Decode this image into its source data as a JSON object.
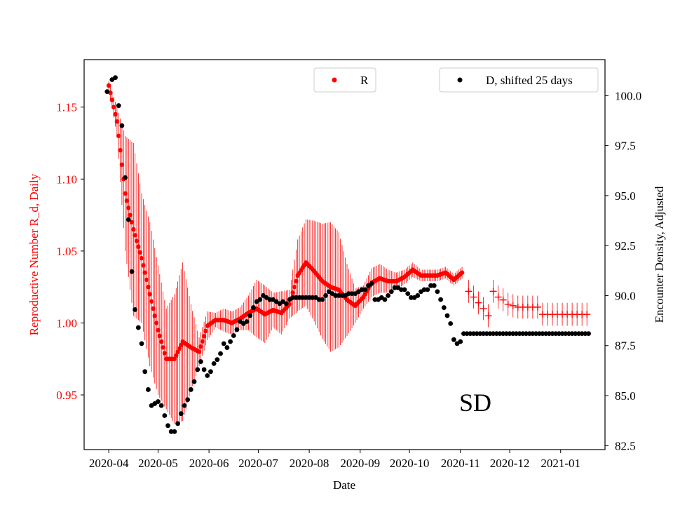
{
  "chart_data": {
    "type": "scatter",
    "title": "",
    "annotation": "SD",
    "xlabel": "Date",
    "ylabel_left": "Reproductive Number R_d, Daily",
    "ylabel_right": "Encounter Density, Adjusted",
    "x_tick_labels": [
      "2020-04",
      "2020-05",
      "2020-06",
      "2020-07",
      "2020-08",
      "2020-09",
      "2020-10",
      "2020-11",
      "2020-12",
      "2021-01"
    ],
    "x_tick_days": [
      0,
      30,
      61,
      91,
      122,
      153,
      183,
      214,
      244,
      275
    ],
    "xlim_days": [
      -15,
      302
    ],
    "ylim_left": [
      0.912,
      1.183
    ],
    "ylim_right": [
      82.3,
      101.8
    ],
    "y_ticks_left": [
      "0.95",
      "1.00",
      "1.05",
      "1.10",
      "1.15"
    ],
    "y_ticks_right": [
      "82.5",
      "85.0",
      "87.5",
      "90.0",
      "92.5",
      "95.0",
      "97.5",
      "100.0"
    ],
    "colors": {
      "R": "#ff0000",
      "D": "#000000",
      "axis": "#000000"
    },
    "legend": {
      "R_label": "R",
      "D_label": "D, shifted 25 days",
      "R_position": "top-center",
      "D_position": "top-right"
    },
    "series_R": {
      "name": "R",
      "axis": "left",
      "knots_day": [
        0,
        5,
        10,
        15,
        20,
        25,
        30,
        35,
        40,
        45,
        50,
        55,
        60,
        65,
        70,
        75,
        80,
        85,
        90,
        95,
        100,
        105,
        110,
        115,
        120,
        125,
        130,
        135,
        140,
        145,
        150,
        155,
        160,
        165,
        170,
        175,
        180,
        185,
        190,
        195,
        200,
        205,
        210,
        215
      ],
      "knots_R": [
        1.165,
        1.14,
        1.09,
        1.065,
        1.045,
        1.02,
        0.995,
        0.975,
        0.975,
        0.987,
        0.983,
        0.98,
        0.998,
        1.002,
        1.002,
        1.0,
        1.003,
        1.007,
        1.01,
        1.006,
        1.009,
        1.007,
        1.013,
        1.033,
        1.042,
        1.036,
        1.029,
        1.025,
        1.023,
        1.016,
        1.012,
        1.018,
        1.028,
        1.031,
        1.029,
        1.029,
        1.032,
        1.037,
        1.033,
        1.033,
        1.033,
        1.035,
        1.03,
        1.035
      ],
      "knots_err": [
        0.003,
        0.01,
        0.04,
        0.06,
        0.045,
        0.05,
        0.045,
        0.035,
        0.045,
        0.055,
        0.03,
        0.01,
        0.01,
        0.005,
        0.008,
        0.008,
        0.008,
        0.012,
        0.02,
        0.02,
        0.012,
        0.015,
        0.01,
        0.025,
        0.03,
        0.035,
        0.04,
        0.045,
        0.04,
        0.025,
        0.012,
        0.008,
        0.01,
        0.01,
        0.008,
        0.006,
        0.005,
        0.005,
        0.004,
        0.004,
        0.004,
        0.004,
        0.004,
        0.004
      ],
      "crosses_day": [
        219,
        222,
        225,
        228,
        231,
        234,
        237,
        240,
        243,
        246,
        249,
        252,
        255,
        258,
        261,
        264,
        267,
        270,
        273,
        276,
        279,
        282,
        285,
        288,
        291
      ],
      "crosses_R": [
        1.022,
        1.018,
        1.014,
        1.01,
        1.005,
        1.022,
        1.018,
        1.016,
        1.013,
        1.012,
        1.011,
        1.011,
        1.011,
        1.011,
        1.011,
        1.006,
        1.006,
        1.006,
        1.006,
        1.006,
        1.006,
        1.006,
        1.006,
        1.006,
        1.006
      ],
      "crosses_err": 0.008
    },
    "series_D": {
      "name": "D, shifted 25 days",
      "axis": "right",
      "knots_day": [
        -1,
        2,
        4,
        6,
        8,
        10,
        12,
        14,
        16,
        18,
        20,
        22,
        24,
        26,
        28,
        30,
        32,
        34,
        36,
        38,
        40,
        42,
        44,
        46,
        48,
        50,
        52,
        54,
        56,
        58,
        60,
        62,
        64,
        66,
        68,
        70,
        72,
        74,
        76,
        78,
        80,
        82,
        84,
        86,
        88,
        90,
        92,
        94,
        96,
        98,
        100,
        102,
        104,
        106,
        108,
        110,
        112,
        114,
        116,
        118,
        120,
        122,
        124,
        126,
        128,
        130,
        132,
        134,
        136,
        138,
        140,
        142,
        144,
        146,
        148,
        150,
        152,
        154,
        156,
        158,
        160,
        162,
        164,
        166,
        168,
        170,
        172,
        174,
        176,
        178,
        180,
        182,
        184,
        186,
        188,
        190,
        192,
        194,
        196,
        198,
        200,
        202,
        204,
        206,
        208,
        210,
        212,
        214,
        216,
        218,
        220,
        222,
        224,
        226,
        228,
        230,
        232,
        234,
        236,
        238,
        240,
        242,
        244,
        246,
        248,
        250,
        252,
        254,
        256,
        258,
        260,
        262,
        264,
        266,
        268,
        270,
        272,
        274,
        276,
        278,
        280,
        282,
        284,
        286,
        288,
        290,
        292
      ],
      "knots_D": [
        100.2,
        100.8,
        100.9,
        99.5,
        98.5,
        95.9,
        93.8,
        91.2,
        89.3,
        88.4,
        87.6,
        86.2,
        85.3,
        84.5,
        84.6,
        84.7,
        84.5,
        84.0,
        83.5,
        83.2,
        83.2,
        83.6,
        84.1,
        84.5,
        84.8,
        85.3,
        85.7,
        86.3,
        86.7,
        86.3,
        86.0,
        86.2,
        86.6,
        86.8,
        87.1,
        87.6,
        87.4,
        87.7,
        88.0,
        88.3,
        88.7,
        88.6,
        88.7,
        89.0,
        89.4,
        89.7,
        89.8,
        90.0,
        89.9,
        89.8,
        89.8,
        89.7,
        89.6,
        89.7,
        89.6,
        89.8,
        89.9,
        89.9,
        89.9,
        89.9,
        89.9,
        89.9,
        89.9,
        89.9,
        89.8,
        89.8,
        90.0,
        90.2,
        90.1,
        90.0,
        90.0,
        90.0,
        90.0,
        90.1,
        90.1,
        90.1,
        90.2,
        90.3,
        90.3,
        90.5,
        90.6,
        89.8,
        89.8,
        89.9,
        89.8,
        90.0,
        90.2,
        90.4,
        90.4,
        90.3,
        90.3,
        90.1,
        89.9,
        89.9,
        90.0,
        90.2,
        90.3,
        90.3,
        90.5,
        90.5,
        90.2,
        89.8,
        89.4,
        89.0,
        88.6,
        87.8,
        87.6,
        87.7,
        88.1,
        88.1,
        88.1,
        88.1,
        88.1,
        88.1,
        88.1,
        88.1,
        88.1,
        88.1,
        88.1,
        88.1,
        88.1,
        88.1,
        88.1,
        88.1,
        88.1,
        88.1,
        88.1,
        88.1,
        88.1,
        88.1,
        88.1,
        88.1,
        88.1,
        88.1,
        88.1,
        88.1,
        88.1,
        88.1,
        88.1,
        88.1,
        88.1,
        88.1,
        88.1,
        88.1,
        88.1,
        88.1,
        88.1
      ]
    }
  }
}
